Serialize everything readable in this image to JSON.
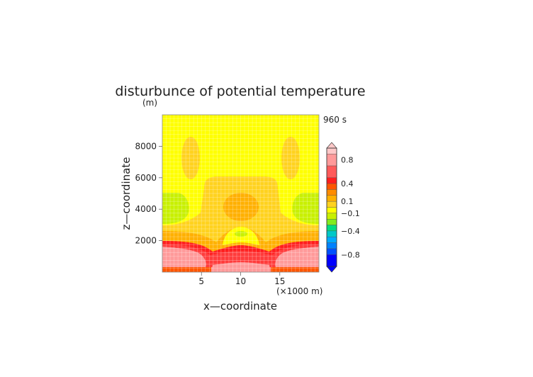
{
  "chart_data": {
    "type": "heatmap",
    "title": "disturbunce of potential temperature",
    "y_unit": "(m)",
    "time_label": "960 s",
    "xlabel": "x—coordinate",
    "ylabel": "z—coordinate",
    "x_unit": "(×1000 m)",
    "xlim": [
      0,
      20
    ],
    "ylim": [
      0,
      10000
    ],
    "x_ticks": [
      5,
      10,
      15
    ],
    "y_ticks": [
      2000,
      4000,
      6000,
      8000
    ],
    "grid": true,
    "colorbar": {
      "position": "right",
      "tick_labels": [
        "0.8",
        "0.4",
        "0.1",
        "−0.1",
        "−0.4",
        "−0.8"
      ],
      "tick_values": [
        0.8,
        0.4,
        0.1,
        -0.1,
        -0.4,
        -0.8
      ],
      "levels": [
        {
          "min": 0.9,
          "max": 1.0,
          "color": "#ffc8c8"
        },
        {
          "min": 0.7,
          "max": 0.9,
          "color": "#ff9a9a"
        },
        {
          "min": 0.5,
          "max": 0.7,
          "color": "#ff5a5a"
        },
        {
          "min": 0.4,
          "max": 0.5,
          "color": "#ff1e1e"
        },
        {
          "min": 0.3,
          "max": 0.4,
          "color": "#ff5500"
        },
        {
          "min": 0.2,
          "max": 0.3,
          "color": "#ff8c00"
        },
        {
          "min": 0.1,
          "max": 0.2,
          "color": "#ffb000"
        },
        {
          "min": 0.0,
          "max": 0.1,
          "color": "#ffd21e"
        },
        {
          "min": -0.1,
          "max": 0.0,
          "color": "#ffff00"
        },
        {
          "min": -0.2,
          "max": -0.1,
          "color": "#c8f000"
        },
        {
          "min": -0.3,
          "max": -0.2,
          "color": "#82eb1e"
        },
        {
          "min": -0.4,
          "max": -0.3,
          "color": "#00dc82"
        },
        {
          "min": -0.5,
          "max": -0.4,
          "color": "#00c8c8"
        },
        {
          "min": -0.6,
          "max": -0.5,
          "color": "#00aaff"
        },
        {
          "min": -0.7,
          "max": -0.6,
          "color": "#0082ff"
        },
        {
          "min": -0.8,
          "max": -0.7,
          "color": "#0050ff"
        },
        {
          "min": -1.0,
          "max": -0.8,
          "color": "#0000ff"
        }
      ]
    },
    "regions": [
      {
        "label": "background",
        "x": [
          0,
          20
        ],
        "z": [
          0,
          10000
        ],
        "value": -0.05
      },
      {
        "label": "central-warm-column",
        "x": [
          5.5,
          14.5
        ],
        "z": [
          2600,
          6000
        ],
        "value": 0.05
      },
      {
        "label": "upper-left-warm-cell",
        "x": [
          2.5,
          4.8
        ],
        "z": [
          5800,
          8600
        ],
        "value": 0.05
      },
      {
        "label": "upper-right-warm-cell",
        "x": [
          15.2,
          17.5
        ],
        "z": [
          5800,
          8600
        ],
        "value": 0.05
      },
      {
        "label": "central-core",
        "x": [
          7.7,
          12.3
        ],
        "z": [
          3200,
          4800
        ],
        "value": 0.15
      },
      {
        "label": "left-cool-cell",
        "x": [
          0,
          3.3
        ],
        "z": [
          3100,
          5000
        ],
        "value": -0.15
      },
      {
        "label": "right-cool-cell",
        "x": [
          16.7,
          20
        ],
        "z": [
          3100,
          5000
        ],
        "value": -0.15
      },
      {
        "label": "central-cool-dot",
        "x": [
          9.1,
          10.9
        ],
        "z": [
          2250,
          2650
        ],
        "value": -0.15
      },
      {
        "label": "lower-warm-band",
        "x": [
          0,
          20
        ],
        "z": [
          1500,
          2600
        ],
        "value": 0.15
      },
      {
        "label": "lower-red-band",
        "x": [
          0,
          20
        ],
        "z": [
          300,
          2000
        ],
        "value": 0.45
      },
      {
        "label": "lower-left-pink",
        "x": [
          0,
          6.5
        ],
        "z": [
          300,
          1650
        ],
        "value": 0.8
      },
      {
        "label": "lower-right-pink",
        "x": [
          13.5,
          20
        ],
        "z": [
          300,
          1650
        ],
        "value": 0.8
      },
      {
        "label": "bottom-center-pink",
        "x": [
          6.5,
          13.5
        ],
        "z": [
          0,
          550
        ],
        "value": 0.8
      },
      {
        "label": "bottom-orange-strip",
        "x": [
          0,
          20
        ],
        "z": [
          0,
          300
        ],
        "value": 0.35
      }
    ]
  }
}
